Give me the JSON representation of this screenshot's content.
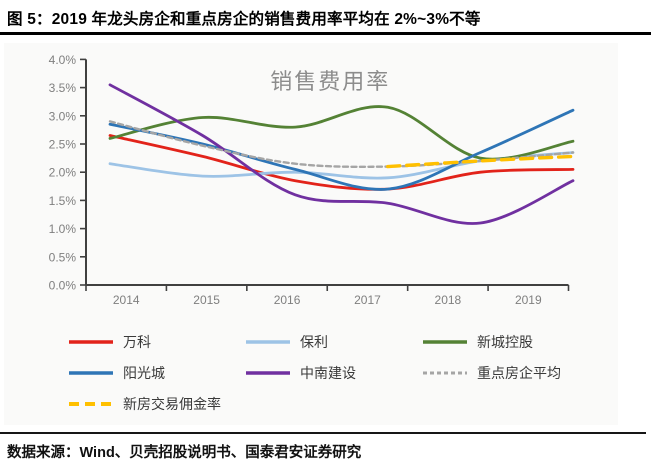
{
  "header": {
    "title": "图 5：2019 年龙头房企和重点房企的销售费用率平均在 2%~3%不等"
  },
  "footer": {
    "source": "数据来源：Wind、贝壳招股说明书、国泰君安证券研究"
  },
  "chart_data": {
    "type": "line",
    "title": "销售费用率",
    "title_color": "#8c8c8c",
    "x_labels": [
      "2014",
      "2015",
      "2016",
      "2017",
      "2018",
      "2019"
    ],
    "y_ticks": [
      "0.0%",
      "0.5%",
      "1.0%",
      "1.5%",
      "2.0%",
      "2.5%",
      "3.0%",
      "3.5%",
      "4.0%"
    ],
    "ylim": [
      0,
      4
    ],
    "grid": false,
    "legend_position": "bottom",
    "axis_color": "#404040",
    "tick_label_color": "#7f7f7f",
    "series": [
      {
        "key": "wanke",
        "name": "万科",
        "color": "#E2231A",
        "line_style": "solid",
        "values": [
          2.65,
          2.28,
          1.85,
          1.7,
          2.0,
          2.05
        ]
      },
      {
        "key": "baoli",
        "name": "保利",
        "color": "#9DC3E6",
        "line_style": "solid",
        "values": [
          2.15,
          1.93,
          2.0,
          1.9,
          2.2,
          2.35
        ]
      },
      {
        "key": "xinchengkonggu",
        "name": "新城控股",
        "color": "#548235",
        "line_style": "solid",
        "values": [
          2.6,
          2.97,
          2.8,
          3.15,
          2.25,
          2.55
        ]
      },
      {
        "key": "yangguangcheng",
        "name": "阳光城",
        "color": "#2E75B6",
        "line_style": "solid",
        "values": [
          2.85,
          2.5,
          2.05,
          1.7,
          2.35,
          3.1
        ]
      },
      {
        "key": "zhongnanjianshe",
        "name": "中南建设",
        "color": "#7030A0",
        "line_style": "solid",
        "values": [
          3.55,
          2.65,
          1.6,
          1.45,
          1.1,
          1.85
        ]
      },
      {
        "key": "zhongdianfangqipingjun",
        "name": "重点房企平均",
        "color": "#A5A5A5",
        "line_style": "dash",
        "values": [
          2.9,
          2.47,
          2.15,
          2.1,
          2.2,
          2.35
        ]
      },
      {
        "key": "xinfangyongjinlu",
        "name": "新房交易佣金率",
        "color": "#FFC000",
        "line_style": "long_dash",
        "values": [
          null,
          null,
          null,
          2.1,
          2.2,
          2.28
        ]
      }
    ]
  }
}
